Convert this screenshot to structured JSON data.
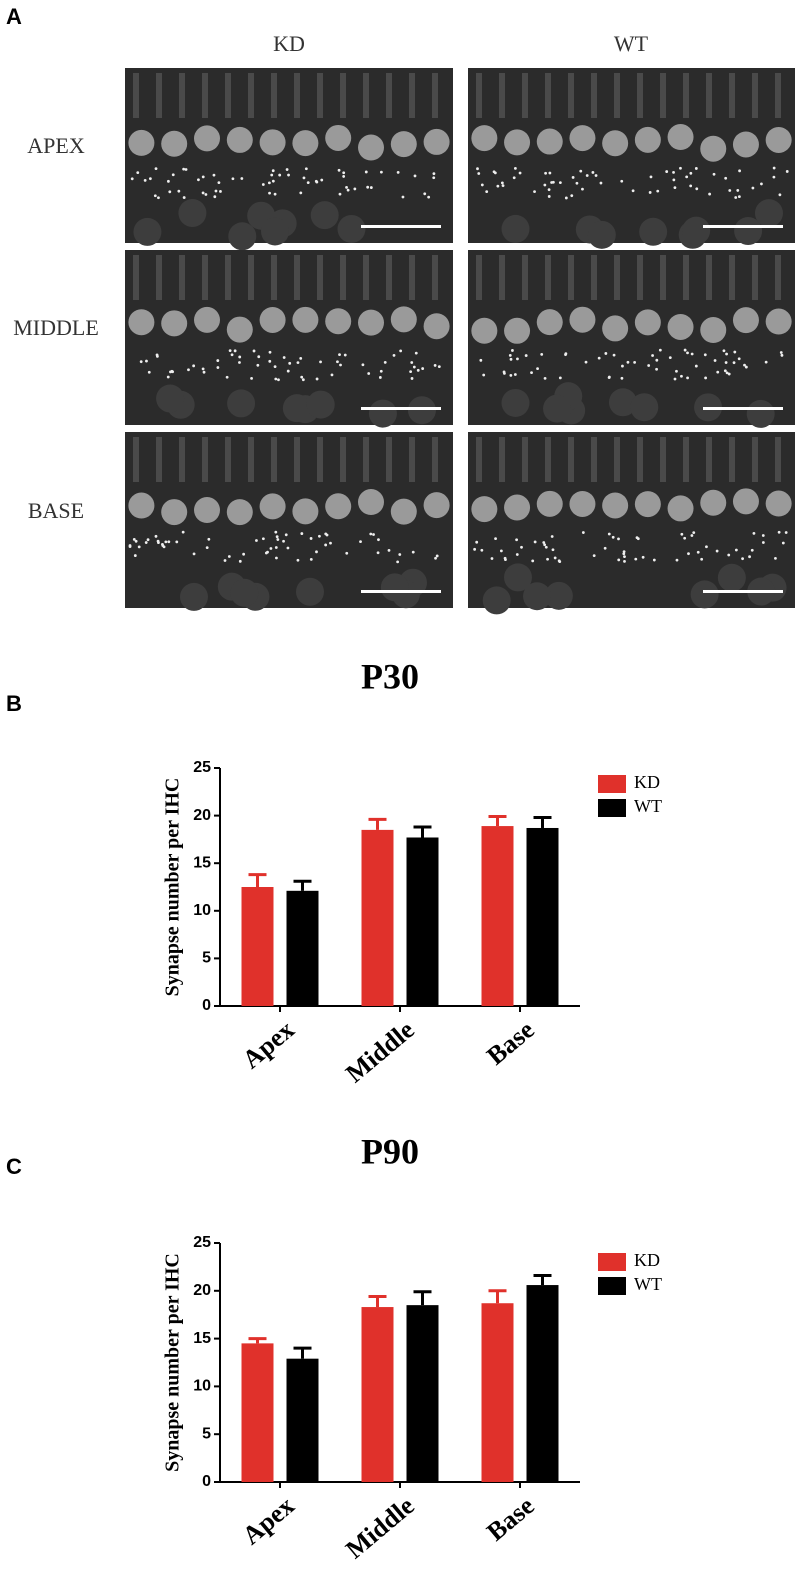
{
  "panel_a": {
    "label": "A",
    "columns": [
      "KD",
      "WT"
    ],
    "rows": [
      "APEX",
      "MIDDLE",
      "BASE"
    ]
  },
  "panel_labels": [
    "B",
    "C"
  ],
  "chart_data": [
    {
      "type": "bar",
      "title": "P30",
      "y_label": "Synapse number per IHC",
      "categories": [
        "Apex",
        "Middle",
        "Base"
      ],
      "series": [
        {
          "name": "KD",
          "color": "#e0312b",
          "values": [
            12.5,
            18.5,
            18.9
          ],
          "errors": [
            1.3,
            1.1,
            1.0
          ]
        },
        {
          "name": "WT",
          "color": "#000000",
          "values": [
            12.1,
            17.7,
            18.7
          ],
          "errors": [
            1.0,
            1.1,
            1.1
          ]
        }
      ],
      "ylim": [
        0,
        25
      ],
      "yticks": [
        0,
        5,
        10,
        15,
        20,
        25
      ],
      "legend": "right"
    },
    {
      "type": "bar",
      "title": "P90",
      "y_label": "Synapse number per IHC",
      "categories": [
        "Apex",
        "Middle",
        "Base"
      ],
      "series": [
        {
          "name": "KD",
          "color": "#e0312b",
          "values": [
            14.5,
            18.3,
            18.7
          ],
          "errors": [
            0.5,
            1.1,
            1.3
          ]
        },
        {
          "name": "WT",
          "color": "#000000",
          "values": [
            12.9,
            18.5,
            20.6
          ],
          "errors": [
            1.1,
            1.4,
            1.0
          ]
        }
      ],
      "ylim": [
        0,
        25
      ],
      "yticks": [
        0,
        5,
        10,
        15,
        20,
        25
      ],
      "legend": "right"
    }
  ]
}
